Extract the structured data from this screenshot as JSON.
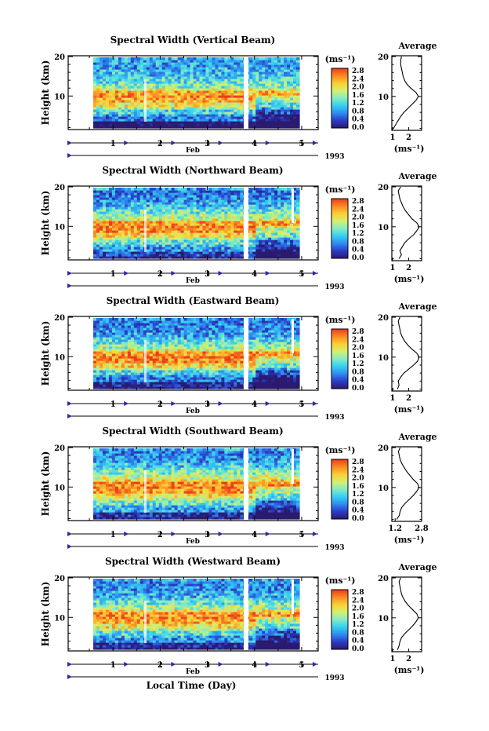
{
  "figure": {
    "xlabel": "Local Time (Day)",
    "month_label": "Feb",
    "year_label": "1993",
    "colorbar_unit": "(ms⁻¹)",
    "profile_title": "Average",
    "profile_unit": "(ms⁻¹)",
    "ylabel": "Height (km)"
  },
  "chart_data": [
    {
      "type": "heatmap",
      "title": "Spectral Width (Vertical Beam)",
      "xlabel": "",
      "ylabel": "Height (km)",
      "x_ticks": [
        "1",
        "2",
        "3",
        "4",
        "5"
      ],
      "y_ticks": [
        "10",
        "20"
      ],
      "xlim": [
        0.05,
        5.35
      ],
      "ylim": [
        1.5,
        20.2
      ],
      "colorbar_ticks": [
        "2.8",
        "2.4",
        "2.0",
        "1.6",
        "1.2",
        "0.8",
        "0.4",
        "0.0"
      ],
      "colorbar_range": [
        0.0,
        2.8
      ],
      "profile_xticks": [
        "1",
        "2"
      ],
      "profile_xlim": [
        0.95,
        2.8
      ],
      "profile": {
        "height_km": [
          2,
          3,
          4,
          5,
          6,
          7,
          8,
          9,
          10,
          11,
          12,
          13,
          14,
          15,
          16,
          17,
          18,
          19,
          20
        ],
        "width_ms": [
          1.05,
          1.2,
          1.35,
          1.5,
          1.7,
          1.95,
          2.2,
          2.45,
          2.6,
          2.45,
          2.15,
          1.9,
          1.75,
          1.65,
          1.6,
          1.55,
          1.5,
          1.5,
          1.55
        ]
      }
    },
    {
      "type": "heatmap",
      "title": "Spectral Width (Northward Beam)",
      "xlabel": "",
      "ylabel": "Height (km)",
      "x_ticks": [
        "1",
        "2",
        "3",
        "4",
        "5"
      ],
      "y_ticks": [
        "10",
        "20"
      ],
      "xlim": [
        0.05,
        5.35
      ],
      "ylim": [
        1.5,
        20.2
      ],
      "colorbar_ticks": [
        "2.8",
        "2.4",
        "2.0",
        "1.6",
        "1.2",
        "0.8",
        "0.4",
        "0.0"
      ],
      "colorbar_range": [
        0.0,
        2.8
      ],
      "profile_xticks": [
        "1",
        "2"
      ],
      "profile_xlim": [
        0.95,
        2.8
      ],
      "profile": {
        "height_km": [
          2,
          3,
          4,
          5,
          6,
          7,
          8,
          9,
          10,
          11,
          12,
          13,
          14,
          15,
          16,
          17,
          18,
          19,
          20
        ],
        "width_ms": [
          1.4,
          1.55,
          1.45,
          1.6,
          1.75,
          2.0,
          2.3,
          2.5,
          2.65,
          2.5,
          2.2,
          2.0,
          1.8,
          1.65,
          1.55,
          1.45,
          1.4,
          1.35,
          1.5
        ]
      }
    },
    {
      "type": "heatmap",
      "title": "Spectral Width (Eastward Beam)",
      "xlabel": "",
      "ylabel": "Height (km)",
      "x_ticks": [
        "1",
        "2",
        "3",
        "4",
        "5"
      ],
      "y_ticks": [
        "10",
        "20"
      ],
      "xlim": [
        0.05,
        5.35
      ],
      "ylim": [
        1.5,
        20.2
      ],
      "colorbar_ticks": [
        "2.8",
        "2.4",
        "2.0",
        "1.6",
        "1.2",
        "0.8",
        "0.4",
        "0.0"
      ],
      "colorbar_range": [
        0.0,
        2.8
      ],
      "profile_xticks": [
        "1",
        "2"
      ],
      "profile_xlim": [
        0.95,
        2.8
      ],
      "profile": {
        "height_km": [
          2,
          3,
          4,
          5,
          6,
          7,
          8,
          9,
          10,
          11,
          12,
          13,
          14,
          15,
          16,
          17,
          18,
          19,
          20
        ],
        "width_ms": [
          1.3,
          1.4,
          1.35,
          1.5,
          1.7,
          2.0,
          2.3,
          2.55,
          2.65,
          2.5,
          2.2,
          1.95,
          1.75,
          1.6,
          1.5,
          1.45,
          1.4,
          1.35,
          1.45
        ]
      }
    },
    {
      "type": "heatmap",
      "title": "Spectral Width (Southward Beam)",
      "xlabel": "",
      "ylabel": "Height (km)",
      "x_ticks": [
        "1",
        "2",
        "3",
        "4",
        "5"
      ],
      "y_ticks": [
        "10",
        "20"
      ],
      "xlim": [
        0.05,
        5.35
      ],
      "ylim": [
        1.5,
        20.2
      ],
      "colorbar_ticks": [
        "2.8",
        "2.4",
        "2.0",
        "1.6",
        "1.2",
        "0.8",
        "0.4",
        "0.0"
      ],
      "colorbar_range": [
        0.0,
        2.8
      ],
      "profile_xticks": [
        "1.2",
        "2.8"
      ],
      "profile_xlim": [
        1.0,
        2.8
      ],
      "profile": {
        "height_km": [
          2,
          3,
          4,
          5,
          6,
          7,
          8,
          9,
          10,
          11,
          12,
          13,
          14,
          15,
          16,
          17,
          18,
          19,
          20
        ],
        "width_ms": [
          1.3,
          1.45,
          1.5,
          1.6,
          1.8,
          2.05,
          2.3,
          2.5,
          2.65,
          2.55,
          2.3,
          2.1,
          1.9,
          1.75,
          1.6,
          1.5,
          1.45,
          1.4,
          1.5
        ]
      }
    },
    {
      "type": "heatmap",
      "title": "Spectral Width (Westward Beam)",
      "xlabel": "",
      "ylabel": "Height (km)",
      "x_ticks": [
        "1",
        "2",
        "3",
        "4",
        "5"
      ],
      "y_ticks": [
        "10",
        "20"
      ],
      "xlim": [
        0.05,
        5.35
      ],
      "ylim": [
        1.5,
        20.2
      ],
      "colorbar_ticks": [
        "2.8",
        "2.4",
        "2.0",
        "1.6",
        "1.2",
        "0.8",
        "0.4",
        "0.0"
      ],
      "colorbar_range": [
        0.0,
        2.8
      ],
      "profile_xticks": [
        "1",
        "2"
      ],
      "profile_xlim": [
        0.95,
        2.8
      ],
      "profile": {
        "height_km": [
          2,
          3,
          4,
          5,
          6,
          7,
          8,
          9,
          10,
          11,
          12,
          13,
          14,
          15,
          16,
          17,
          18,
          19,
          20
        ],
        "width_ms": [
          1.3,
          1.4,
          1.45,
          1.55,
          1.75,
          2.0,
          2.25,
          2.45,
          2.6,
          2.5,
          2.25,
          2.0,
          1.8,
          1.65,
          1.55,
          1.5,
          1.45,
          1.4,
          1.5
        ]
      }
    }
  ],
  "colors": {
    "colormap": [
      "#2b1a6e",
      "#2a3cc8",
      "#2f8cf2",
      "#34d0f0",
      "#86ecc4",
      "#d6f06c",
      "#fbcf33",
      "#f98a22",
      "#ec3a1c"
    ],
    "gap": "#ffffff",
    "time_axis_marker": "#2a2aa0"
  }
}
